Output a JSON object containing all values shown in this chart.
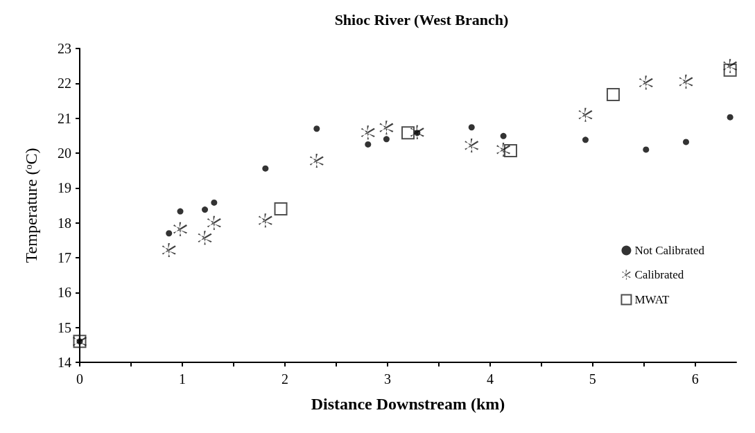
{
  "chart_data": {
    "type": "scatter",
    "title": "Shioc River (West Branch)",
    "xlabel": "Distance Downstream (km)",
    "ylabel": "Temperature (ᵒC)",
    "xlim": [
      0,
      6.4
    ],
    "xticks": [
      0,
      {
        "value": 0.5,
        "label": null
      },
      1,
      {
        "value": 1.5,
        "label": null
      },
      2,
      {
        "value": 2.5,
        "label": null
      },
      3,
      {
        "value": 3.5,
        "label": null
      },
      4,
      {
        "value": 4.5,
        "label": null
      },
      5,
      {
        "value": 5.5,
        "label": null
      },
      6
    ],
    "ylim": [
      14,
      23
    ],
    "yticks": [
      14,
      15,
      16,
      17,
      18,
      19,
      20,
      21,
      22,
      23
    ],
    "grid": false,
    "legend": "right",
    "series": [
      {
        "name": "Not Calibrated",
        "color": "#000000",
        "marker": "circle",
        "x": [
          0,
          0.87,
          0.98,
          1.22,
          1.31,
          1.81,
          2.31,
          2.81,
          2.99,
          3.29,
          3.82,
          4.13,
          4.93,
          5.52,
          5.91,
          6.34
        ],
        "values": [
          14.6,
          17.7,
          18.33,
          18.38,
          18.58,
          19.56,
          20.7,
          20.25,
          20.4,
          20.58,
          20.74,
          20.49,
          20.38,
          20.1,
          20.32,
          21.03
        ]
      },
      {
        "name": "Calibrated",
        "color": "#111111",
        "marker": "cross",
        "x": [
          0,
          0.87,
          0.98,
          1.22,
          1.31,
          1.81,
          2.31,
          2.81,
          2.99,
          3.29,
          3.82,
          4.13,
          4.93,
          5.52,
          5.91,
          6.34
        ],
        "values": [
          14.6,
          17.22,
          17.82,
          17.57,
          18.0,
          18.07,
          19.78,
          20.59,
          20.73,
          20.6,
          20.22,
          20.1,
          21.1,
          22.02,
          22.05,
          22.5
        ]
      },
      {
        "name": "MWAT",
        "color": "#222222",
        "marker": "square",
        "x": [
          0,
          1.96,
          3.2,
          4.2,
          5.2,
          6.34
        ],
        "values": [
          14.6,
          18.4,
          20.58,
          20.07,
          21.68,
          22.38
        ]
      }
    ]
  }
}
